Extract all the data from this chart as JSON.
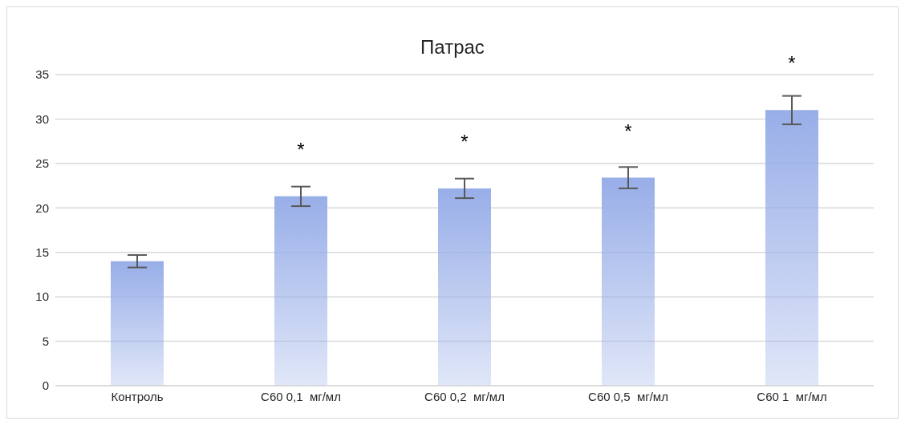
{
  "chart_data": {
    "type": "bar",
    "title": "Патрас",
    "categories": [
      "Контроль",
      "C60 0,1  мг/мл",
      "C60 0,2  мг/мл",
      "C60 0,5  мг/мл",
      "C60 1  мг/мл"
    ],
    "values": [
      14.0,
      21.3,
      22.2,
      23.4,
      31.0
    ],
    "errors": [
      0.7,
      1.1,
      1.1,
      1.2,
      1.6
    ],
    "color": "#98aee8",
    "ylim": [
      0,
      35
    ],
    "yticks": [
      0,
      5,
      10,
      15,
      20,
      25,
      30,
      35
    ],
    "grid": "y",
    "annotations": [
      {
        "text": "*",
        "x": "C60 0,1  мг/мл",
        "y": 21.3
      },
      {
        "text": "*",
        "x": "C60 0,2  мг/мл",
        "y": 22.2
      },
      {
        "text": "*",
        "x": "C60 0,5  мг/мл",
        "y": 23.4
      },
      {
        "text": "*",
        "x": "C60 1  мг/мл",
        "y": 31.0
      }
    ]
  }
}
